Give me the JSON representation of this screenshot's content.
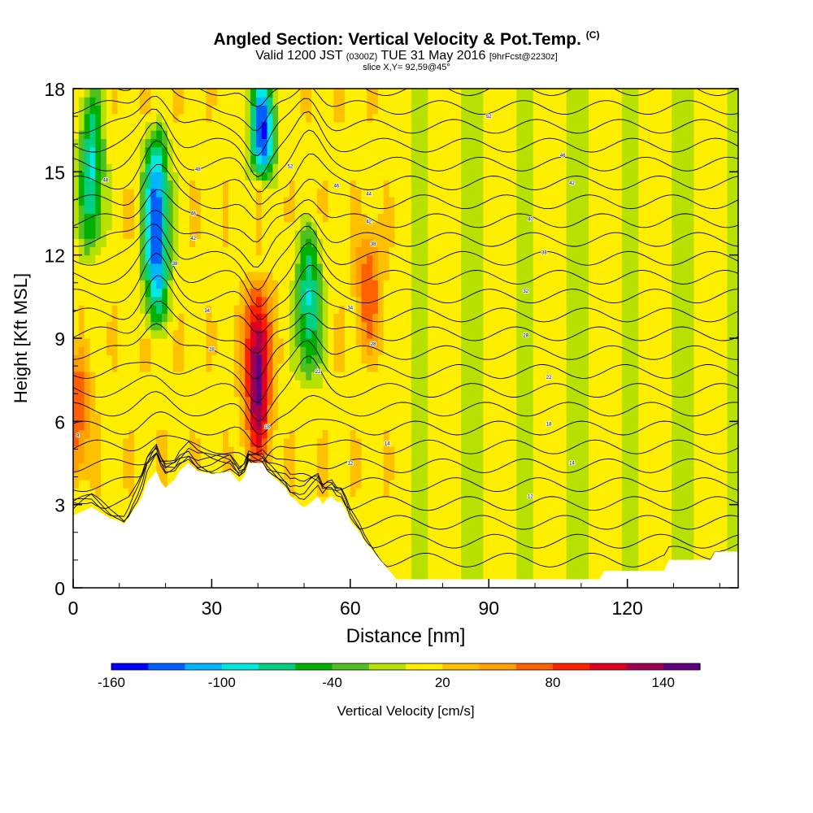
{
  "title": {
    "main": "Angled Section: Vertical Velocity & Pot.Temp.",
    "main_unit": "(C)",
    "valid_prefix": "Valid 1200 JST",
    "valid_utc": "(0300Z)",
    "valid_date": "TUE 31 May 2016",
    "forecast": "[9hrFcst@2230z]",
    "slice": "slice X,Y= 92,59@45°"
  },
  "chart_data": {
    "type": "heatmap",
    "xlabel": "Distance [nm]",
    "ylabel": "Height [Kft MSL]",
    "xlim": [
      0,
      144
    ],
    "ylim": [
      0,
      18
    ],
    "x_ticks": [
      0,
      30,
      60,
      90,
      120
    ],
    "y_ticks": [
      0,
      3,
      6,
      9,
      12,
      15,
      18
    ],
    "colorbar": {
      "label": "Vertical Velocity [cm/s]",
      "tick_labels": [
        "-160",
        "-100",
        "-40",
        "20",
        "80",
        "140"
      ],
      "tick_values": [
        -160,
        -100,
        -40,
        20,
        80,
        140
      ],
      "levels": [
        -160,
        -140,
        -120,
        -100,
        -80,
        -60,
        -40,
        -20,
        0,
        20,
        40,
        60,
        80,
        100,
        120,
        140,
        160
      ],
      "colors": [
        "#0000ff",
        "#0060ff",
        "#00b4ff",
        "#00e8e0",
        "#00d080",
        "#00b000",
        "#50c020",
        "#b8e000",
        "#ffee00",
        "#ffc000",
        "#ffa000",
        "#ff6000",
        "#ff2000",
        "#e00020",
        "#a00050",
        "#600080"
      ]
    },
    "updraft_cores": [
      {
        "x": 40,
        "y_bottom": 4.5,
        "y_top": 11,
        "peak": 140
      },
      {
        "x": 64,
        "y_bottom": 8.5,
        "y_top": 13,
        "peak": 60
      },
      {
        "x": 1,
        "y_bottom": 4,
        "y_top": 8.5,
        "peak": 60
      }
    ],
    "downdraft_cores": [
      {
        "x": 18,
        "y_bottom": 9.5,
        "y_top": 16.5,
        "peak": -160
      },
      {
        "x": 41,
        "y_bottom": 15,
        "y_top": 18,
        "peak": -160
      },
      {
        "x": 51,
        "y_bottom": 7.5,
        "y_top": 13,
        "peak": -100
      },
      {
        "x": 4,
        "y_bottom": 12,
        "y_top": 18,
        "peak": -100
      }
    ],
    "terrain_profile": {
      "x": [
        0,
        4,
        7,
        8,
        10,
        11,
        12,
        13,
        14,
        15,
        16,
        18,
        19,
        20,
        22,
        23,
        25,
        27,
        30,
        34,
        36,
        37,
        38,
        41,
        42,
        44,
        46,
        47,
        48,
        49,
        50,
        51,
        53,
        54,
        55,
        56,
        57,
        58,
        59,
        60,
        61,
        62,
        63,
        64,
        65,
        66,
        67,
        68,
        69,
        70,
        79,
        114,
        115,
        128,
        129,
        138,
        139,
        144
      ],
      "y": [
        2.6,
        2.9,
        2.6,
        2.5,
        2.4,
        2.3,
        2.5,
        2.8,
        3.0,
        3.3,
        3.8,
        4.2,
        3.8,
        3.6,
        3.9,
        4.2,
        4.5,
        4.2,
        4.1,
        4.2,
        3.8,
        4.0,
        4.5,
        4.5,
        4.2,
        3.9,
        3.6,
        3.3,
        3.2,
        3.0,
        2.9,
        3.0,
        3.3,
        3.0,
        3.2,
        3.3,
        3.1,
        3.1,
        2.8,
        2.4,
        2.2,
        2.0,
        1.7,
        1.5,
        1.3,
        1.1,
        0.9,
        0.7,
        0.5,
        0.3,
        0.3,
        0.3,
        0.6,
        0.6,
        1.0,
        1.0,
        1.3,
        1.3
      ]
    },
    "theta_labels": [
      {
        "x": 1,
        "y": 5.5,
        "text": "8"
      },
      {
        "x": 7,
        "y": 14.7,
        "text": "48"
      },
      {
        "x": 27,
        "y": 15.1,
        "text": "48"
      },
      {
        "x": 26,
        "y": 13.5,
        "text": "46"
      },
      {
        "x": 26,
        "y": 12.6,
        "text": "42"
      },
      {
        "x": 22,
        "y": 11.7,
        "text": "38"
      },
      {
        "x": 29,
        "y": 10.0,
        "text": "34"
      },
      {
        "x": 30,
        "y": 8.6,
        "text": "28"
      },
      {
        "x": 42,
        "y": 5.8,
        "text": "18"
      },
      {
        "x": 47,
        "y": 15.2,
        "text": "52"
      },
      {
        "x": 57,
        "y": 14.5,
        "text": "46"
      },
      {
        "x": 64,
        "y": 14.2,
        "text": "44"
      },
      {
        "x": 64,
        "y": 13.2,
        "text": "42"
      },
      {
        "x": 65,
        "y": 12.4,
        "text": "38"
      },
      {
        "x": 60,
        "y": 10.1,
        "text": "34"
      },
      {
        "x": 65,
        "y": 8.8,
        "text": "28"
      },
      {
        "x": 53,
        "y": 7.8,
        "text": "22"
      },
      {
        "x": 68,
        "y": 5.2,
        "text": "14"
      },
      {
        "x": 60,
        "y": 4.5,
        "text": "12"
      },
      {
        "x": 90,
        "y": 17.0,
        "text": "52"
      },
      {
        "x": 106,
        "y": 15.6,
        "text": "46"
      },
      {
        "x": 108,
        "y": 14.6,
        "text": "42"
      },
      {
        "x": 99,
        "y": 13.3,
        "text": "40"
      },
      {
        "x": 102,
        "y": 12.1,
        "text": "38"
      },
      {
        "x": 98,
        "y": 10.7,
        "text": "32"
      },
      {
        "x": 98,
        "y": 9.1,
        "text": "28"
      },
      {
        "x": 103,
        "y": 7.6,
        "text": "22"
      },
      {
        "x": 103,
        "y": 5.9,
        "text": "18"
      },
      {
        "x": 108,
        "y": 4.5,
        "text": "14"
      },
      {
        "x": 99,
        "y": 3.3,
        "text": "12"
      }
    ]
  }
}
